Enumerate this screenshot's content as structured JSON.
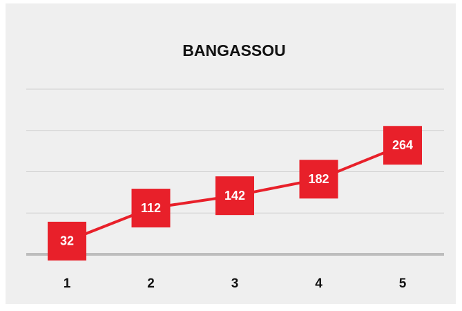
{
  "chart_data": {
    "type": "line",
    "title": "BANGASSOU",
    "categories": [
      "1",
      "2",
      "3",
      "4",
      "5"
    ],
    "values": [
      32,
      112,
      142,
      182,
      264
    ],
    "color": "#e8202a",
    "ylim": [
      0,
      400
    ],
    "yticks": [
      0,
      100,
      200,
      300,
      400
    ],
    "grid": true
  }
}
